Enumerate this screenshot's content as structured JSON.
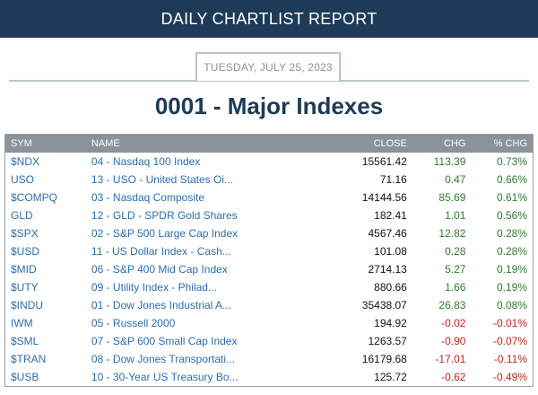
{
  "header": {
    "title": "DAILY CHARTLIST REPORT"
  },
  "report": {
    "date": "TUESDAY, JULY 25, 2023",
    "title": "0001 - Major Indexes"
  },
  "table": {
    "columns": {
      "sym": "SYM",
      "name": "NAME",
      "close": "CLOSE",
      "chg": "CHG",
      "pct": "% CHG"
    },
    "rows": [
      {
        "sym": "$NDX",
        "name": "04 - Nasdaq 100 Index",
        "close": "15561.42",
        "chg": "113.39",
        "pct": "0.73%"
      },
      {
        "sym": "USO",
        "name": "13 - USO - United States Oi...",
        "close": "71.16",
        "chg": "0.47",
        "pct": "0.66%"
      },
      {
        "sym": "$COMPQ",
        "name": "03 - Nasdaq Composite",
        "close": "14144.56",
        "chg": "85.69",
        "pct": "0.61%"
      },
      {
        "sym": "GLD",
        "name": "12 - GLD - SPDR Gold Shares",
        "close": "182.41",
        "chg": "1.01",
        "pct": "0.56%"
      },
      {
        "sym": "$SPX",
        "name": "02 - S&P 500 Large Cap Index",
        "close": "4567.46",
        "chg": "12.82",
        "pct": "0.28%"
      },
      {
        "sym": "$USD",
        "name": "11 - US Dollar Index - Cash...",
        "close": "101.08",
        "chg": "0.28",
        "pct": "0.28%"
      },
      {
        "sym": "$MID",
        "name": "06 - S&P 400 Mid Cap Index",
        "close": "2714.13",
        "chg": "5.27",
        "pct": "0.19%"
      },
      {
        "sym": "$UTY",
        "name": "09 - Utility Index - Philad...",
        "close": "880.66",
        "chg": "1.66",
        "pct": "0.19%"
      },
      {
        "sym": "$INDU",
        "name": "01 - Dow Jones Industrial A...",
        "close": "35438.07",
        "chg": "26.83",
        "pct": "0.08%"
      },
      {
        "sym": "IWM",
        "name": "05 - Russell 2000",
        "close": "194.92",
        "chg": "-0.02",
        "pct": "-0.01%"
      },
      {
        "sym": "$SML",
        "name": "07 - S&P 600 Small Cap Index",
        "close": "1263.57",
        "chg": "-0.90",
        "pct": "-0.07%"
      },
      {
        "sym": "$TRAN",
        "name": "08 - Dow Jones Transportati...",
        "close": "16179.68",
        "chg": "-17.01",
        "pct": "-0.11%"
      },
      {
        "sym": "$USB",
        "name": "10 - 30-Year US Treasury Bo...",
        "close": "125.72",
        "chg": "-0.62",
        "pct": "-0.49%"
      }
    ]
  },
  "colors": {
    "header_bg": "#1d3a57",
    "positive": "#2e7d2e",
    "negative": "#c0261c",
    "link": "#2a6fb0"
  }
}
